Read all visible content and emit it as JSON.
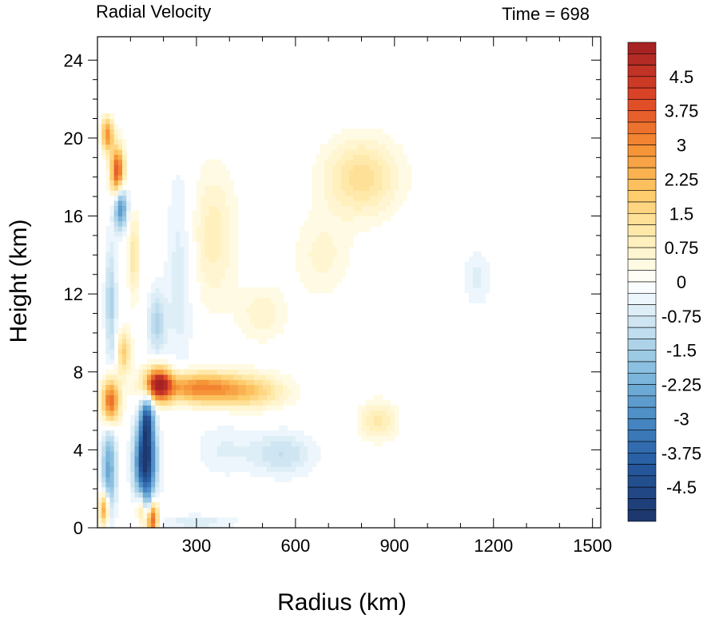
{
  "chart_data": {
    "type": "heatmap",
    "title_left": "Radial Velocity",
    "title_right": "Time = 698",
    "xlabel": "Radius (km)",
    "ylabel": "Height (km)",
    "xlim": [
      0,
      1525
    ],
    "ylim": [
      0,
      25.2
    ],
    "x_ticks": [
      300,
      600,
      900,
      1200,
      1500
    ],
    "y_ticks": [
      0,
      4,
      8,
      12,
      16,
      20,
      24
    ],
    "x_tick_labels": [
      "300",
      "600",
      "900",
      "1200",
      "1500"
    ],
    "y_tick_labels": [
      "0",
      "4",
      "8",
      "12",
      "16",
      "20",
      "24"
    ],
    "colorbar": {
      "min": -5.25,
      "max": 5.25,
      "step": 0.25,
      "tick_values": [
        4.5,
        3.75,
        3,
        2.25,
        1.5,
        0.75,
        0,
        -0.75,
        -1.5,
        -2.25,
        -3,
        -3.75,
        -4.5
      ],
      "tick_labels": [
        "4.5",
        "3.75",
        "3",
        "2.25",
        "1.5",
        "0.75",
        "0",
        "-0.75",
        "-1.5",
        "-2.25",
        "-3",
        "-3.75",
        "-4.5"
      ],
      "colors_negative_to_positive": [
        "#1c3468",
        "#ffffff",
        "#a11f22"
      ]
    },
    "features": [
      {
        "x": 145,
        "y": 3.4,
        "sx": 22,
        "sy": 1.4,
        "v": -5.2
      },
      {
        "x": 150,
        "y": 5.6,
        "sx": 14,
        "sy": 0.9,
        "v": -3.2
      },
      {
        "x": 155,
        "y": 1.1,
        "sx": 15,
        "sy": 0.6,
        "v": -2.6
      },
      {
        "x": 165,
        "y": 0.6,
        "sx": 12,
        "sy": 0.7,
        "v": 5.2
      },
      {
        "x": 135,
        "y": 1.0,
        "sx": 12,
        "sy": 0.6,
        "v": 2.6
      },
      {
        "x": 185,
        "y": 7.4,
        "sx": 28,
        "sy": 0.6,
        "v": 4.6
      },
      {
        "x": 300,
        "y": 7.2,
        "sx": 90,
        "sy": 0.55,
        "v": 3.0
      },
      {
        "x": 460,
        "y": 7.0,
        "sx": 80,
        "sy": 0.6,
        "v": 1.6
      },
      {
        "x": 40,
        "y": 6.5,
        "sx": 18,
        "sy": 0.8,
        "v": 3.8
      },
      {
        "x": 35,
        "y": 3.0,
        "sx": 15,
        "sy": 1.6,
        "v": -2.4
      },
      {
        "x": 20,
        "y": 1.0,
        "sx": 10,
        "sy": 0.6,
        "v": 3.0
      },
      {
        "x": 60,
        "y": 18.3,
        "sx": 14,
        "sy": 0.9,
        "v": 4.0
      },
      {
        "x": 70,
        "y": 16.5,
        "sx": 14,
        "sy": 0.8,
        "v": -3.0
      },
      {
        "x": 30,
        "y": 20.2,
        "sx": 12,
        "sy": 0.6,
        "v": 3.0
      },
      {
        "x": 40,
        "y": 11.5,
        "sx": 12,
        "sy": 2.2,
        "v": -1.4
      },
      {
        "x": 80,
        "y": 9.0,
        "sx": 14,
        "sy": 0.8,
        "v": 1.8
      },
      {
        "x": 350,
        "y": 15.0,
        "sx": 50,
        "sy": 2.5,
        "v": 0.9
      },
      {
        "x": 800,
        "y": 18.0,
        "sx": 80,
        "sy": 1.4,
        "v": 1.4
      },
      {
        "x": 680,
        "y": 14.0,
        "sx": 60,
        "sy": 1.5,
        "v": 0.6
      },
      {
        "x": 560,
        "y": 3.8,
        "sx": 70,
        "sy": 0.8,
        "v": -1.0
      },
      {
        "x": 380,
        "y": 4.0,
        "sx": 60,
        "sy": 1.0,
        "v": -0.5
      },
      {
        "x": 850,
        "y": 5.5,
        "sx": 40,
        "sy": 0.7,
        "v": 1.1
      },
      {
        "x": 1150,
        "y": 12.8,
        "sx": 30,
        "sy": 1.0,
        "v": -0.6
      },
      {
        "x": 250,
        "y": 13.0,
        "sx": 30,
        "sy": 4.0,
        "v": -0.7
      },
      {
        "x": 500,
        "y": 11.0,
        "sx": 50,
        "sy": 1.0,
        "v": 0.7
      },
      {
        "x": 300,
        "y": 0.3,
        "sx": 90,
        "sy": 0.25,
        "v": -0.7
      },
      {
        "x": 180,
        "y": 10.5,
        "sx": 20,
        "sy": 1.2,
        "v": -1.3
      },
      {
        "x": 110,
        "y": 14.0,
        "sx": 12,
        "sy": 1.5,
        "v": 1.2
      }
    ]
  }
}
